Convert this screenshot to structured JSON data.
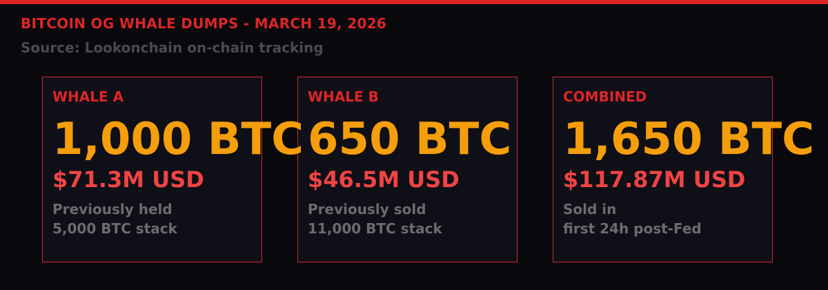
{
  "header": {
    "title": "BITCOIN OG WHALE DUMPS - MARCH 19, 2026",
    "source": "Source: Lookonchain on-chain tracking"
  },
  "colors": {
    "accent": "#dc2626",
    "btc": "#f59e0b",
    "usd": "#ef4444",
    "muted": "#6b6b70",
    "background": "#08080d"
  },
  "cards": [
    {
      "label": "WHALE A",
      "btc": "1,000 BTC",
      "usd": "$71.3M USD",
      "desc_line1": "Previously held",
      "desc_line2": "5,000 BTC stack"
    },
    {
      "label": "WHALE B",
      "btc": "650 BTC",
      "usd": "$46.5M USD",
      "desc_line1": "Previously sold",
      "desc_line2": "11,000 BTC stack"
    },
    {
      "label": "COMBINED",
      "btc": "1,650 BTC",
      "usd": "$117.87M USD",
      "desc_line1": "Sold in",
      "desc_line2": "first 24h post-Fed"
    }
  ]
}
